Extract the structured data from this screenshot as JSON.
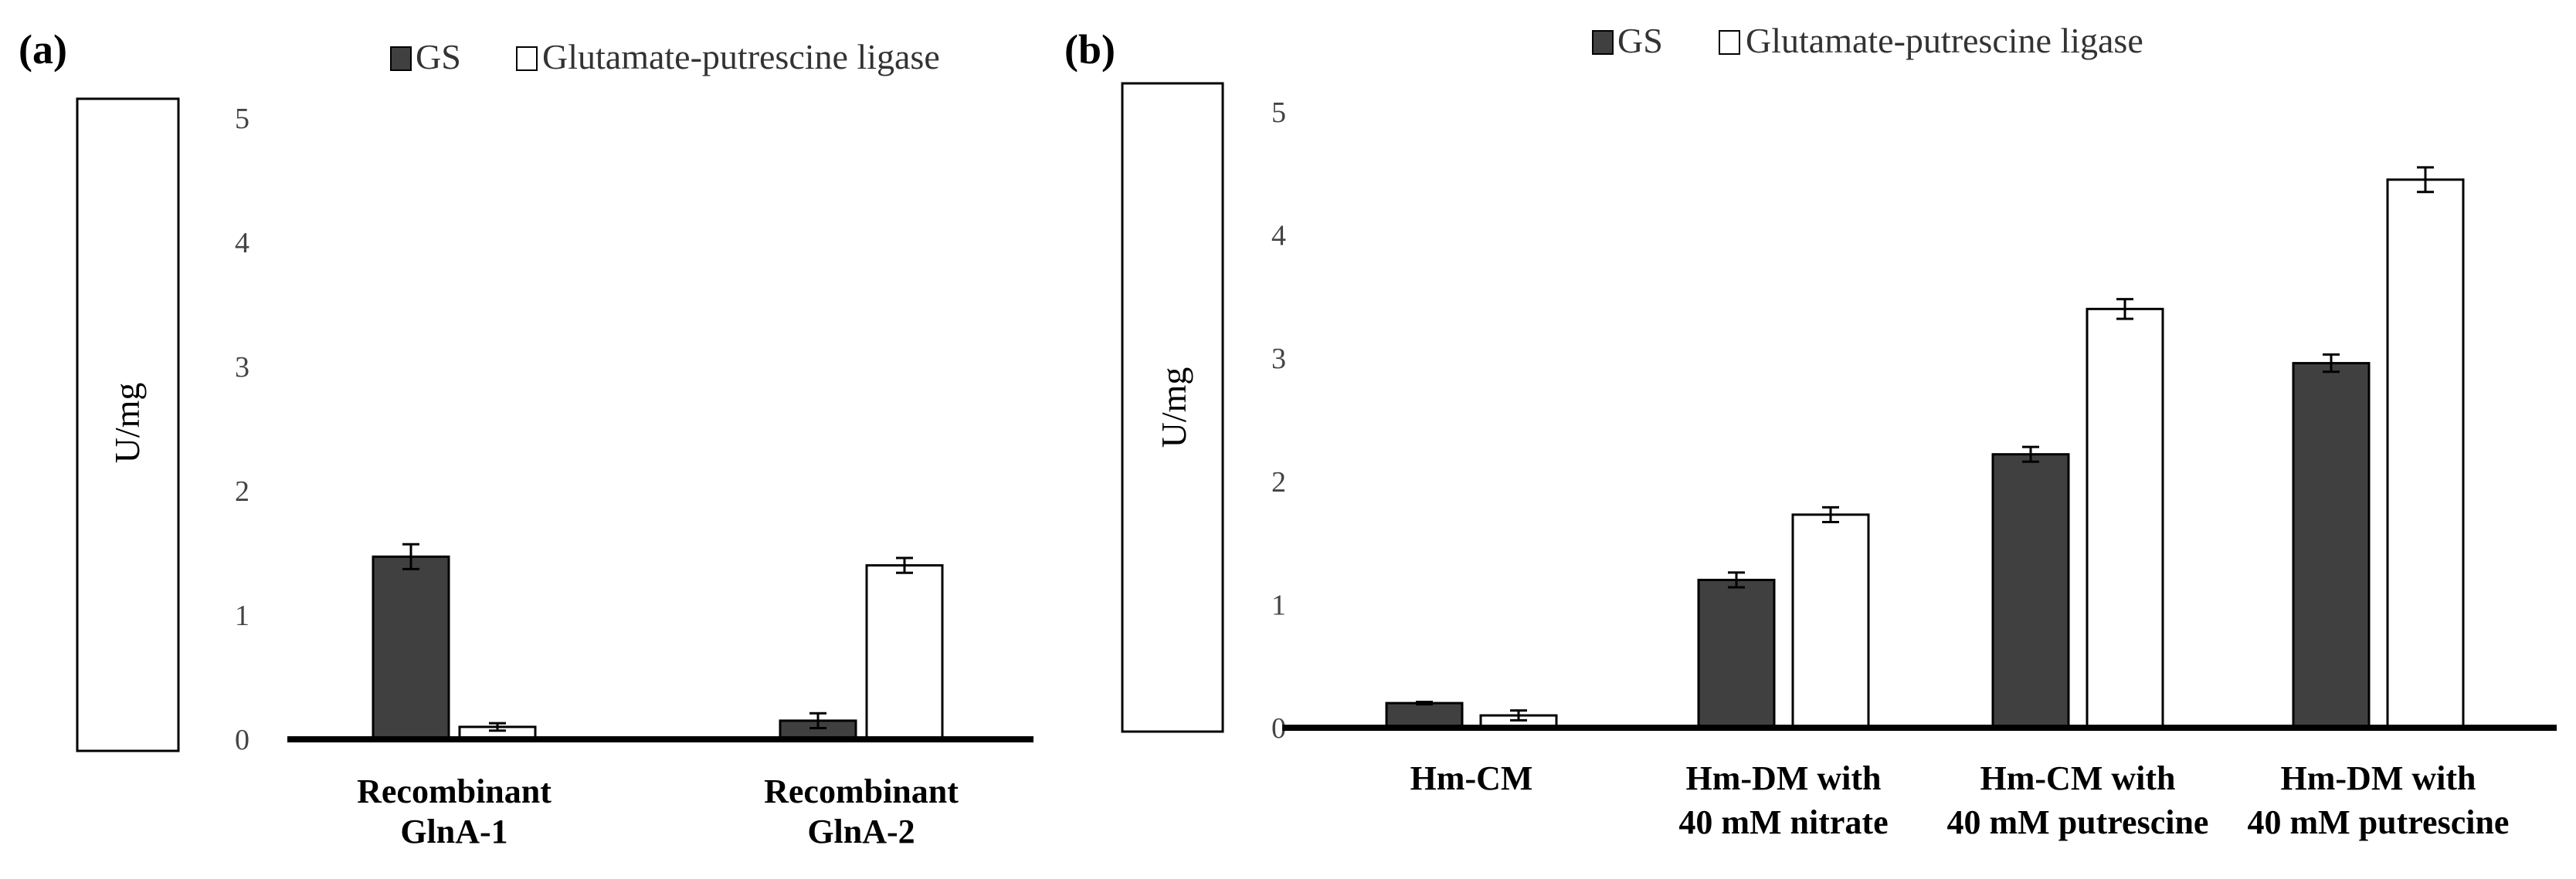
{
  "chart_data": [
    {
      "panel": "(a)",
      "type": "bar",
      "ylabel": "U/mg",
      "ylim": [
        0,
        5
      ],
      "yticks": [
        "0",
        "1",
        "2",
        "3",
        "4",
        "5"
      ],
      "legend": [
        "GS",
        "Glutamate-putrescine ligase"
      ],
      "categories": [
        [
          "Recombinant",
          "GlnA-1"
        ],
        [
          "Recombinant",
          "GlnA-2"
        ]
      ],
      "series": [
        {
          "name": "GS",
          "color": "#404040",
          "values": [
            1.47,
            0.15
          ],
          "errors": [
            0.1,
            0.06
          ]
        },
        {
          "name": "Glutamate-putrescine ligase",
          "color": "#ffffff",
          "values": [
            0.1,
            1.4
          ],
          "errors": [
            0.03,
            0.06
          ]
        }
      ]
    },
    {
      "panel": "(b)",
      "type": "bar",
      "ylabel": "U/mg",
      "ylim": [
        0,
        5
      ],
      "yticks": [
        "0",
        "1",
        "2",
        "3",
        "4",
        "5"
      ],
      "legend": [
        "GS",
        "Glutamate-putrescine ligase"
      ],
      "categories": [
        [
          "Hm-CM"
        ],
        [
          "Hm-DM with",
          "40 mM nitrate"
        ],
        [
          "Hm-CM with",
          "40 mM putrescine"
        ],
        [
          "Hm-DM with",
          "40 mM putrescine"
        ]
      ],
      "series": [
        {
          "name": "GS",
          "color": "#404040",
          "values": [
            0.2,
            1.2,
            2.22,
            2.96
          ],
          "errors": [
            0.01,
            0.06,
            0.06,
            0.07
          ]
        },
        {
          "name": "Glutamate-putrescine ligase",
          "color": "#ffffff",
          "values": [
            0.1,
            1.73,
            3.4,
            4.45
          ],
          "errors": [
            0.04,
            0.06,
            0.08,
            0.1
          ]
        }
      ]
    }
  ]
}
